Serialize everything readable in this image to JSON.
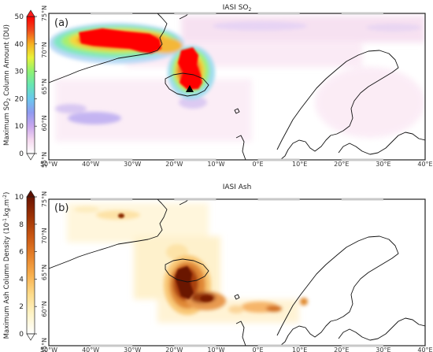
{
  "chart_data": [
    {
      "type": "heatmap",
      "panel_label": "(a)",
      "title": "IASI SO",
      "title_sub": "2",
      "colorbar": {
        "label": "Maximum SO",
        "label_sub": "2",
        "label_rest": " Column Amount (DU)",
        "ticks": [
          "0",
          "10",
          "20",
          "30",
          "40",
          "50"
        ],
        "range": [
          0,
          50
        ],
        "colors": [
          "#ffffff",
          "#f5d8ef",
          "#c9a6ee",
          "#8f9af0",
          "#69c8ee",
          "#67e6b3",
          "#8ef272",
          "#e9f239",
          "#f6b021",
          "#ef4a1d",
          "#ff0000"
        ]
      },
      "xticks": [
        "50°W",
        "40°W",
        "30°W",
        "20°W",
        "10°W",
        "0°E",
        "10°E",
        "20°E",
        "30°E",
        "40°E"
      ],
      "yticks": [
        "55°N",
        "60°N",
        "65°N",
        "70°N",
        "75°N"
      ],
      "xlim": [
        -50,
        40
      ],
      "ylim": [
        55,
        75
      ],
      "features": [
        {
          "name": "plume over Greenland Sea",
          "lon": [
            -48,
            -19
          ],
          "lat": [
            69,
            73
          ],
          "value": 50
        },
        {
          "name": "plume north of Iceland",
          "lon": [
            -22,
            -14
          ],
          "lat": [
            65,
            71
          ],
          "value": 50
        },
        {
          "name": "diffuse plume over Norwegian Sea",
          "lon": [
            -10,
            40
          ],
          "lat": [
            66,
            74
          ],
          "value": 4
        },
        {
          "name": "plume south of Greenland",
          "lon": [
            -48,
            -28
          ],
          "lat": [
            60,
            63
          ],
          "value": 18
        }
      ],
      "marker": {
        "name": "volcano",
        "lon": -17.5,
        "lat": 64.6
      }
    },
    {
      "type": "heatmap",
      "panel_label": "(b)",
      "title": "IASI Ash",
      "colorbar": {
        "label": "Maximum Ash Column Density (10",
        "label_sup": "-1",
        "label_mid": ".kg.m",
        "label_sup2": "-2",
        "label_end": ")",
        "ticks": [
          "0",
          "2",
          "4",
          "6",
          "8",
          "10"
        ],
        "range": [
          0,
          10
        ],
        "colors": [
          "#ffffff",
          "#fef4c8",
          "#fddc8c",
          "#f8b04e",
          "#e6812a",
          "#c85612",
          "#9c3205",
          "#6b1402"
        ]
      },
      "xticks": [
        "50°W",
        "40°W",
        "30°W",
        "20°W",
        "10°W",
        "0°E",
        "10°E",
        "20°E",
        "30°E",
        "40°E"
      ],
      "yticks": [
        "55°N",
        "60°N",
        "65°N",
        "70°N",
        "75°N"
      ],
      "xlim": [
        -50,
        40
      ],
      "ylim": [
        55,
        75
      ],
      "features": [
        {
          "name": "ash over Iceland and south",
          "lon": [
            -22,
            -12
          ],
          "lat": [
            59,
            66
          ],
          "value": 9
        },
        {
          "name": "ash band toward Scandinavia",
          "lon": [
            -12,
            12
          ],
          "lat": [
            58,
            61
          ],
          "value": 5
        },
        {
          "name": "ash patches near Greenland",
          "lon": [
            -45,
            -25
          ],
          "lat": [
            69,
            74
          ],
          "value": 3
        },
        {
          "name": "diffuse ash north",
          "lon": [
            -30,
            -5
          ],
          "lat": [
            66,
            73
          ],
          "value": 1.5
        }
      ]
    }
  ]
}
